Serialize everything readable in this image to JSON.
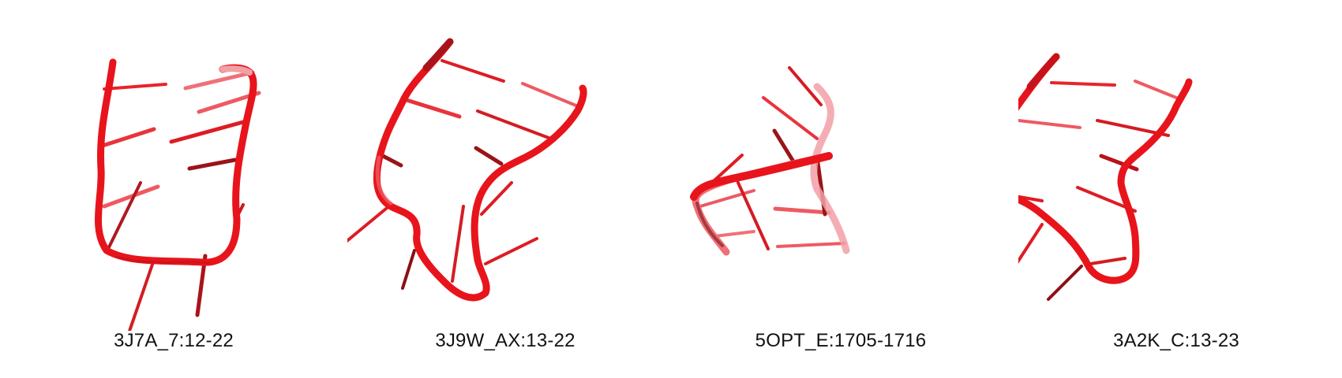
{
  "colors": {
    "backbone": "#e8141c",
    "backbone_light": "#f08088",
    "base": "#d41c22",
    "base_light": "#ee5a62",
    "base_dark": "#8a1016"
  },
  "structures": [
    {
      "label": "3J7A_7:12-22"
    },
    {
      "label": "3J9W_AX:13-22"
    },
    {
      "label": "5OPT_E:1705-1716"
    },
    {
      "label": "3A2K_C:13-23"
    }
  ]
}
